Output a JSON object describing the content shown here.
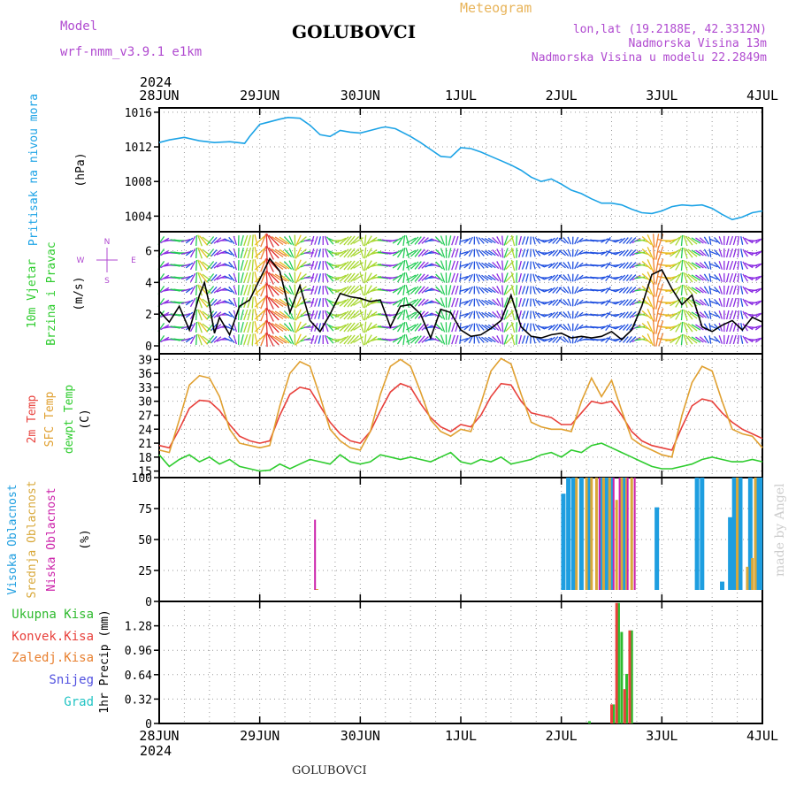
{
  "header": {
    "model_label": "Model",
    "model_name": "wrf-nmm_v3.9.1 e1km",
    "station": "GOLUBOVCI",
    "chart_title": "Meteogram",
    "lonlat": "lon,lat (19.2188E, 42.3312N)",
    "elevation": "Nadmorska Visina 13m",
    "model_elevation": "Nadmorska Visina u modelu 22.2849m",
    "year_top": "2024",
    "year_bottom": "2024",
    "footer_station": "GOLUBOVCI",
    "watermark": "made by Angel"
  },
  "colors": {
    "pressure": "#1ca3e6",
    "temp2m": "#e8413c",
    "sfc_temp": "#e0a030",
    "dewpt": "#2ecc2e",
    "high_cloud": "#1e9ee0",
    "mid_cloud": "#d8a83a",
    "low_cloud": "#cc22aa",
    "total_precip": "#2fba2f",
    "conv_precip": "#e8413c",
    "model_label": "#b04ad0",
    "header_meta": "#b04ad0"
  },
  "chart_data": [
    {
      "type": "line",
      "panel": "pressure",
      "x_ticks": [
        "28JUN",
        "29JUN",
        "30JUN",
        "1JUL",
        "2JUL",
        "3JUL",
        "4JUL"
      ],
      "xlim_days": [
        0,
        6
      ],
      "ylabel_lines": [
        "Pritisak na nivou mora",
        "(hPa)"
      ],
      "ylim": [
        1002.2,
        1016.5
      ],
      "yticks": [
        1004,
        1008,
        1012,
        1016
      ],
      "grid": true,
      "series": [
        {
          "name": "Pritisak na nivou mora",
          "x": [
            0,
            0.1,
            0.25,
            0.4,
            0.55,
            0.7,
            0.85,
            0.9,
            1.0,
            1.1,
            1.2,
            1.28,
            1.4,
            1.5,
            1.6,
            1.7,
            1.8,
            1.9,
            2.0,
            2.1,
            2.2,
            2.25,
            2.35,
            2.5,
            2.6,
            2.7,
            2.8,
            2.9,
            3.0,
            3.1,
            3.2,
            3.3,
            3.4,
            3.5,
            3.6,
            3.7,
            3.8,
            3.9,
            4.0,
            4.1,
            4.2,
            4.3,
            4.4,
            4.5,
            4.6,
            4.7,
            4.8,
            4.9,
            5.0,
            5.1,
            5.2,
            5.3,
            5.4,
            5.5,
            5.6,
            5.7,
            5.8,
            5.9,
            6.0
          ],
          "values": [
            1012.5,
            1012.8,
            1013.1,
            1012.7,
            1012.5,
            1012.6,
            1012.4,
            1013.2,
            1014.6,
            1014.9,
            1015.2,
            1015.4,
            1015.3,
            1014.5,
            1013.4,
            1013.2,
            1013.9,
            1013.7,
            1013.6,
            1013.9,
            1014.2,
            1014.3,
            1014.1,
            1013.2,
            1012.5,
            1011.7,
            1010.9,
            1010.8,
            1011.9,
            1011.8,
            1011.4,
            1010.9,
            1010.4,
            1009.9,
            1009.3,
            1008.5,
            1008.0,
            1008.3,
            1007.7,
            1007.0,
            1006.6,
            1006.0,
            1005.5,
            1005.5,
            1005.3,
            1004.8,
            1004.4,
            1004.3,
            1004.6,
            1005.1,
            1005.3,
            1005.2,
            1005.3,
            1004.9,
            1004.2,
            1003.6,
            1003.9,
            1004.4,
            1004.6
          ]
        }
      ]
    },
    {
      "type": "line",
      "panel": "wind",
      "ylabel_lines": [
        "10m Vjetar",
        "Brzina i Pravac",
        "(m/s)"
      ],
      "compass": [
        "N",
        "E",
        "S",
        "W"
      ],
      "ylim": [
        -0.5,
        7.2
      ],
      "yticks": [
        0,
        2,
        4,
        6
      ],
      "grid": true,
      "series": [
        {
          "name": "Brzina",
          "x": [
            0,
            0.1,
            0.2,
            0.3,
            0.4,
            0.45,
            0.5,
            0.55,
            0.6,
            0.7,
            0.8,
            0.9,
            1.0,
            1.1,
            1.2,
            1.3,
            1.4,
            1.5,
            1.6,
            1.7,
            1.8,
            1.9,
            2.0,
            2.1,
            2.2,
            2.3,
            2.4,
            2.5,
            2.6,
            2.7,
            2.8,
            2.9,
            3.0,
            3.1,
            3.2,
            3.3,
            3.4,
            3.5,
            3.6,
            3.7,
            3.8,
            3.9,
            4.0,
            4.1,
            4.2,
            4.3,
            4.4,
            4.5,
            4.6,
            4.7,
            4.8,
            4.9,
            5.0,
            5.1,
            5.2,
            5.3,
            5.4,
            5.5,
            5.6,
            5.7,
            5.8,
            5.9,
            6.0
          ],
          "values": [
            2.2,
            1.5,
            2.5,
            1.0,
            3.2,
            4.0,
            2.6,
            0.8,
            1.8,
            0.7,
            2.5,
            2.9,
            4.2,
            5.5,
            4.7,
            2.1,
            3.8,
            1.6,
            0.9,
            2.0,
            3.3,
            3.1,
            3.0,
            2.8,
            2.9,
            1.2,
            2.5,
            2.6,
            2.0,
            0.5,
            2.3,
            2.1,
            1.0,
            0.6,
            0.7,
            1.1,
            1.6,
            3.2,
            1.2,
            0.6,
            0.5,
            0.7,
            0.8,
            0.5,
            0.6,
            0.5,
            0.6,
            0.9,
            0.4,
            1.0,
            2.5,
            4.5,
            4.8,
            3.6,
            2.6,
            3.2,
            1.2,
            0.9,
            1.3,
            1.6,
            1.0,
            1.8,
            1.5
          ]
        }
      ]
    },
    {
      "type": "line",
      "panel": "temperature",
      "ylabel_lines": [
        "2m Temp",
        "SFC Temp",
        "dewpt Temp",
        "(C)"
      ],
      "ylim": [
        13.6,
        40.2
      ],
      "yticks": [
        15,
        18,
        21,
        24,
        27,
        30,
        33,
        36,
        39
      ],
      "grid": true,
      "x": [
        0,
        0.1,
        0.2,
        0.3,
        0.4,
        0.5,
        0.6,
        0.7,
        0.8,
        0.9,
        1.0,
        1.1,
        1.2,
        1.3,
        1.4,
        1.5,
        1.6,
        1.7,
        1.8,
        1.9,
        2.0,
        2.1,
        2.2,
        2.3,
        2.4,
        2.5,
        2.6,
        2.7,
        2.8,
        2.9,
        3.0,
        3.1,
        3.2,
        3.3,
        3.4,
        3.5,
        3.6,
        3.7,
        3.8,
        3.9,
        4.0,
        4.1,
        4.2,
        4.3,
        4.4,
        4.5,
        4.6,
        4.7,
        4.8,
        4.9,
        5.0,
        5.1,
        5.2,
        5.3,
        5.4,
        5.5,
        5.6,
        5.7,
        5.8,
        5.9,
        6.0
      ],
      "series": [
        {
          "name": "2m Temp",
          "values": [
            20.5,
            20.0,
            24.0,
            28.5,
            30.2,
            30.0,
            28.0,
            25.0,
            22.5,
            21.5,
            21.0,
            21.5,
            27.0,
            31.5,
            33.0,
            32.5,
            29.0,
            25.5,
            23.0,
            21.5,
            21.0,
            23.5,
            28.0,
            32.0,
            33.8,
            33.0,
            29.5,
            26.5,
            24.5,
            23.5,
            25.0,
            24.5,
            27.0,
            31.0,
            33.8,
            33.5,
            30.0,
            27.5,
            27.0,
            26.5,
            25.0,
            25.0,
            27.5,
            30.0,
            29.5,
            30.0,
            27.0,
            23.5,
            21.5,
            20.5,
            20.0,
            19.5,
            24.5,
            29.0,
            30.5,
            30.0,
            27.5,
            25.5,
            24.0,
            23.0,
            22.0
          ]
        },
        {
          "name": "SFC Temp",
          "values": [
            19.5,
            19.0,
            26.0,
            33.5,
            35.5,
            35.0,
            31.0,
            24.0,
            21.0,
            20.5,
            20.0,
            20.5,
            29.0,
            36.0,
            38.5,
            37.5,
            31.0,
            24.0,
            21.5,
            20.0,
            19.5,
            23.5,
            31.5,
            37.5,
            39.0,
            37.5,
            32.0,
            26.0,
            23.5,
            22.5,
            24.0,
            23.5,
            29.5,
            36.5,
            39.2,
            38.0,
            31.5,
            25.5,
            24.5,
            24.0,
            24.0,
            23.5,
            30.0,
            35.0,
            31.0,
            34.5,
            28.0,
            22.0,
            20.5,
            19.5,
            18.5,
            18.0,
            27.0,
            34.0,
            37.5,
            36.5,
            30.0,
            24.0,
            23.0,
            22.5,
            20.0
          ]
        },
        {
          "name": "dewpt Temp",
          "values": [
            18.5,
            16.0,
            17.5,
            18.5,
            17.0,
            18.0,
            16.5,
            17.5,
            16.0,
            15.5,
            15.0,
            15.2,
            16.5,
            15.5,
            16.5,
            17.5,
            17.0,
            16.5,
            18.5,
            17.0,
            16.5,
            17.0,
            18.5,
            18.0,
            17.5,
            18.0,
            17.5,
            17.0,
            18.0,
            19.0,
            17.0,
            16.5,
            17.5,
            17.0,
            18.0,
            16.5,
            17.0,
            17.5,
            18.5,
            19.0,
            18.0,
            19.5,
            19.0,
            20.5,
            21.0,
            20.0,
            19.0,
            18.0,
            17.0,
            16.0,
            15.5,
            15.5,
            16.0,
            16.5,
            17.5,
            18.0,
            17.5,
            17.0,
            17.0,
            17.5,
            17.0
          ]
        }
      ]
    },
    {
      "type": "bar",
      "panel": "cloud",
      "ylabel_lines": [
        "Visoka Oblacnost",
        "Srednja Oblacnost",
        "Niska Oblacnost",
        "(%)"
      ],
      "ylim": [
        0,
        100
      ],
      "yticks": [
        0,
        25,
        50,
        75,
        100
      ],
      "grid": true,
      "series": [
        {
          "name": "Visoka Oblacnost",
          "x": [
            4.02,
            4.07,
            4.12,
            4.2,
            4.27,
            4.4,
            4.45,
            4.5,
            4.62,
            4.95,
            5.35,
            5.4,
            5.6,
            5.68,
            5.72,
            5.78,
            5.82,
            5.88,
            5.95,
            5.98
          ],
          "values": [
            87,
            100,
            100,
            100,
            100,
            100,
            100,
            100,
            100,
            76,
            100,
            100,
            16,
            68,
            100,
            100,
            6,
            100,
            100,
            100
          ]
        },
        {
          "name": "Srednja Oblacnost",
          "x": [
            1.57,
            4.15,
            4.25,
            4.3,
            4.35,
            4.42,
            4.48,
            4.55,
            4.6,
            4.65,
            4.7,
            5.75,
            5.85,
            5.9,
            5.93
          ],
          "values": [
            10,
            100,
            100,
            100,
            100,
            100,
            100,
            82,
            100,
            100,
            100,
            100,
            28,
            35,
            100
          ]
        },
        {
          "name": "Niska Oblacnost",
          "x": [
            1.55,
            4.38,
            4.52,
            4.58,
            4.66,
            4.73
          ],
          "values": [
            66,
            100,
            100,
            100,
            100,
            100
          ]
        }
      ]
    },
    {
      "type": "bar",
      "panel": "precip",
      "ylabel_lines": [
        "1hr Precip (mm)"
      ],
      "legend_labels": [
        "Ukupna Kisa",
        "Konvek.Kisa",
        "Zaledj.Kisa",
        "Snijeg",
        "Grad"
      ],
      "ylim": [
        0,
        1.6
      ],
      "yticks": [
        0,
        0.32,
        0.64,
        0.96,
        1.28
      ],
      "grid": true,
      "series": [
        {
          "name": "Ukupna Kisa",
          "x": [
            4.28,
            4.52,
            4.57,
            4.6,
            4.65,
            4.7
          ],
          "values": [
            0.03,
            0.25,
            1.58,
            1.2,
            0.65,
            1.22
          ]
        },
        {
          "name": "Konvek.Kisa",
          "x": [
            4.5,
            4.55,
            4.63,
            4.68
          ],
          "values": [
            0.25,
            1.58,
            0.45,
            1.22
          ]
        }
      ]
    }
  ]
}
